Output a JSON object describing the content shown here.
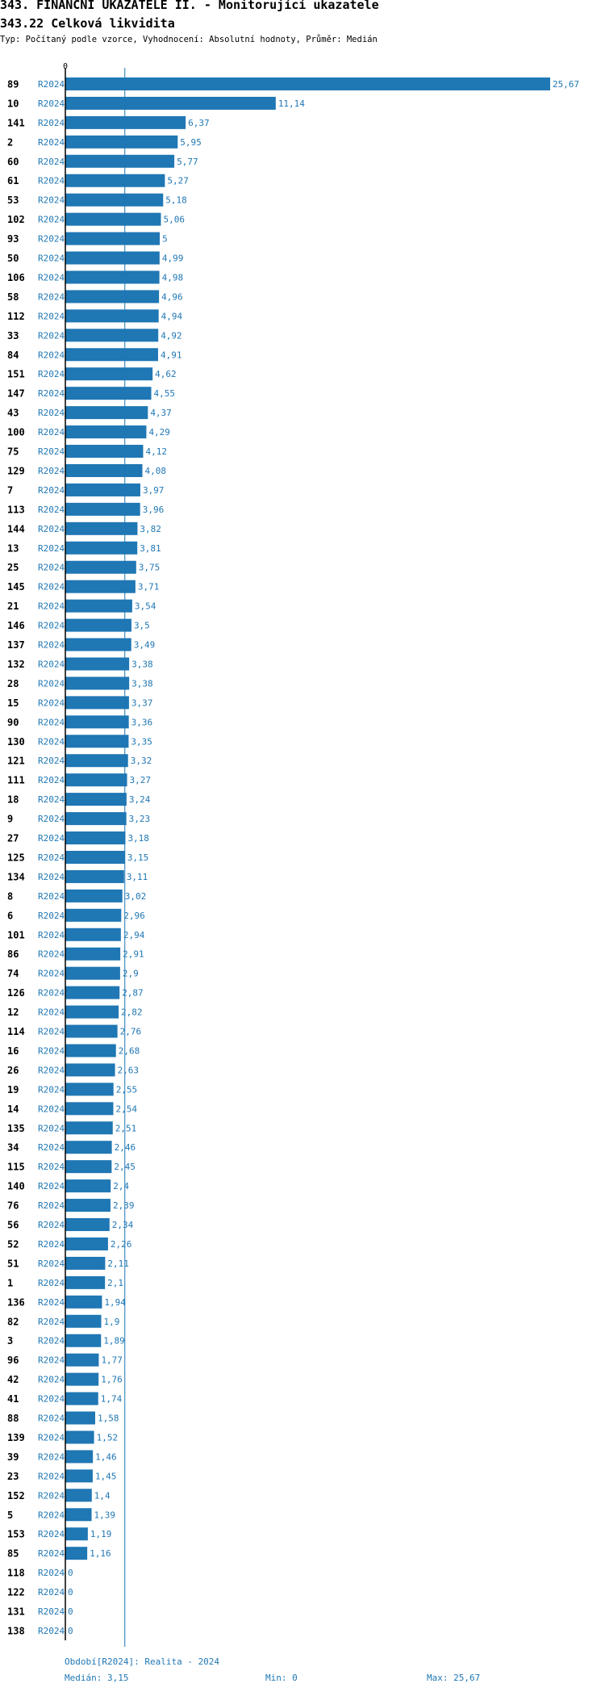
{
  "header": {
    "title": "343. FINANČNÍ UKAZATELE II. - Monitorující ukazatele",
    "subtitle": "343.22 Celková likvidita",
    "info": "Typ: Počítaný podle vzorce, Vyhodnocení: Absolutní hodnoty, Průměr: Medián"
  },
  "footer": {
    "period": "Období[R2024]: Realita - 2024",
    "median": "Medián: 3,15",
    "min": "Min: 0",
    "max": "Max: 25,67"
  },
  "colors": {
    "bar": "#1f77b4",
    "median_line": "#1f77b4",
    "axis": "#000000"
  },
  "chart_data": {
    "type": "bar",
    "orientation": "horizontal",
    "period_label": "R2024",
    "xlim": [
      0,
      25.67
    ],
    "x_tick_label": "0",
    "median": 3.15,
    "categories": [
      "89",
      "10",
      "141",
      "2",
      "60",
      "61",
      "53",
      "102",
      "93",
      "50",
      "106",
      "58",
      "112",
      "33",
      "84",
      "151",
      "147",
      "43",
      "100",
      "75",
      "129",
      "7",
      "113",
      "144",
      "13",
      "25",
      "145",
      "21",
      "146",
      "137",
      "132",
      "28",
      "15",
      "90",
      "130",
      "121",
      "111",
      "18",
      "9",
      "27",
      "125",
      "134",
      "8",
      "6",
      "101",
      "86",
      "74",
      "126",
      "12",
      "114",
      "16",
      "26",
      "19",
      "14",
      "135",
      "34",
      "115",
      "140",
      "76",
      "56",
      "52",
      "51",
      "1",
      "136",
      "82",
      "3",
      "96",
      "42",
      "41",
      "88",
      "139",
      "39",
      "23",
      "152",
      "5",
      "153",
      "85",
      "118",
      "122",
      "131",
      "138"
    ],
    "values": [
      25.67,
      11.14,
      6.37,
      5.95,
      5.77,
      5.27,
      5.18,
      5.06,
      5,
      4.99,
      4.98,
      4.96,
      4.94,
      4.92,
      4.91,
      4.62,
      4.55,
      4.37,
      4.29,
      4.12,
      4.08,
      3.97,
      3.96,
      3.82,
      3.81,
      3.75,
      3.71,
      3.54,
      3.5,
      3.49,
      3.38,
      3.38,
      3.37,
      3.36,
      3.35,
      3.32,
      3.27,
      3.24,
      3.23,
      3.18,
      3.15,
      3.11,
      3.02,
      2.96,
      2.94,
      2.91,
      2.9,
      2.87,
      2.82,
      2.76,
      2.68,
      2.63,
      2.55,
      2.54,
      2.51,
      2.46,
      2.45,
      2.4,
      2.39,
      2.34,
      2.26,
      2.11,
      2.1,
      1.94,
      1.9,
      1.89,
      1.77,
      1.76,
      1.74,
      1.58,
      1.52,
      1.46,
      1.45,
      1.4,
      1.39,
      1.19,
      1.16,
      0,
      0,
      0,
      0
    ],
    "value_labels": [
      "25,67",
      "11,14",
      "6,37",
      "5,95",
      "5,77",
      "5,27",
      "5,18",
      "5,06",
      "5",
      "4,99",
      "4,98",
      "4,96",
      "4,94",
      "4,92",
      "4,91",
      "4,62",
      "4,55",
      "4,37",
      "4,29",
      "4,12",
      "4,08",
      "3,97",
      "3,96",
      "3,82",
      "3,81",
      "3,75",
      "3,71",
      "3,54",
      "3,5",
      "3,49",
      "3,38",
      "3,38",
      "3,37",
      "3,36",
      "3,35",
      "3,32",
      "3,27",
      "3,24",
      "3,23",
      "3,18",
      "3,15",
      "3,11",
      "3,02",
      "2,96",
      "2,94",
      "2,91",
      "2,9",
      "2,87",
      "2,82",
      "2,76",
      "2,68",
      "2,63",
      "2,55",
      "2,54",
      "2,51",
      "2,46",
      "2,45",
      "2,4",
      "2,39",
      "2,34",
      "2,26",
      "2,11",
      "2,1",
      "1,94",
      "1,9",
      "1,89",
      "1,77",
      "1,76",
      "1,74",
      "1,58",
      "1,52",
      "1,46",
      "1,45",
      "1,4",
      "1,39",
      "1,19",
      "1,16",
      "0",
      "0",
      "0",
      "0"
    ]
  }
}
